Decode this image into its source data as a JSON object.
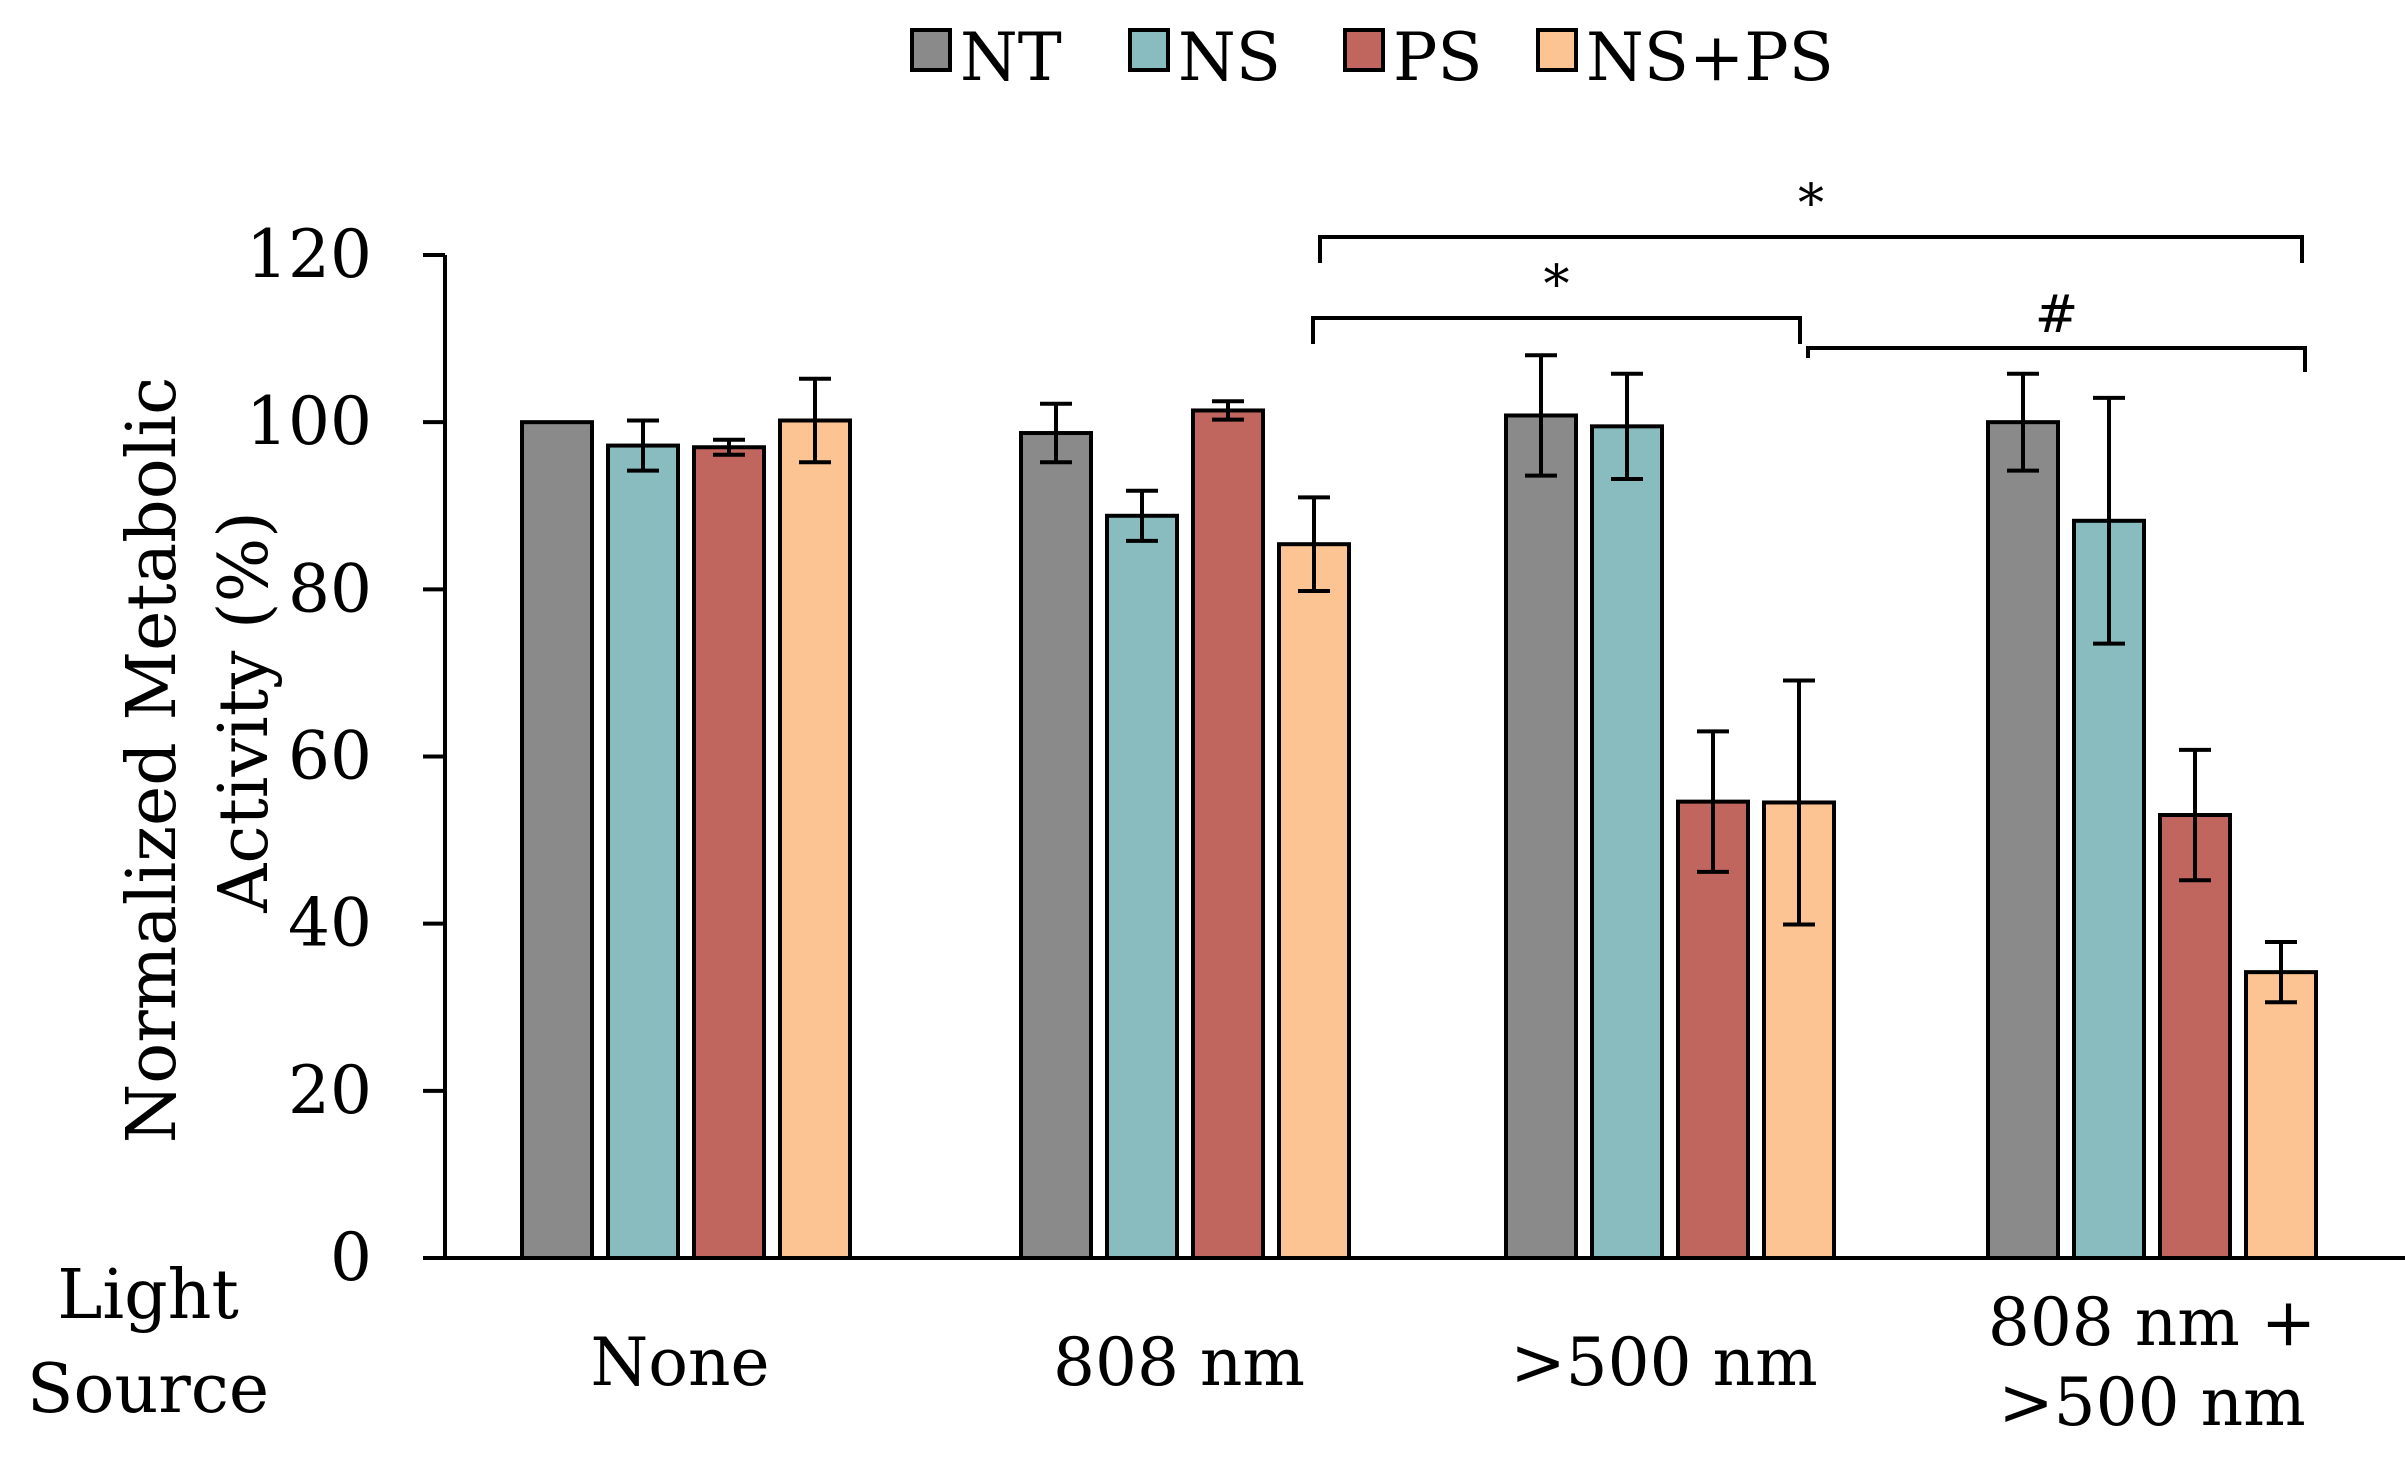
{
  "chart_data": {
    "type": "bar",
    "title": "",
    "ylabel": "Normalized Metabolic Activity (%)",
    "ylabel_lines": [
      "Normalized Metabolic",
      "Activity (%)"
    ],
    "xlabel_lines": [
      "Light",
      "Source"
    ],
    "ylim": [
      0,
      120
    ],
    "yticks": [
      0,
      20,
      40,
      60,
      80,
      100,
      120
    ],
    "categories": [
      "None",
      "808 nm",
      ">500 nm",
      "808 nm + >500 nm"
    ],
    "category_label_lines": [
      [
        "None"
      ],
      [
        "808 nm"
      ],
      [
        ">500 nm"
      ],
      [
        "808 nm +",
        ">500 nm"
      ]
    ],
    "series": [
      {
        "name": "NT",
        "color": "#8a8a8a",
        "values": [
          100,
          98.7,
          100.8,
          100
        ],
        "errors": [
          0,
          3.5,
          7.2,
          5.8
        ]
      },
      {
        "name": "NS",
        "color": "#88bcbf",
        "values": [
          97.2,
          88.8,
          99.5,
          88.2
        ],
        "errors": [
          3.0,
          3.0,
          6.3,
          14.7
        ]
      },
      {
        "name": "PS",
        "color": "#c1655f",
        "values": [
          97.0,
          101.4,
          54.6,
          53.0
        ],
        "errors": [
          0.9,
          1.1,
          8.4,
          7.8
        ]
      },
      {
        "name": "NS+PS",
        "color": "#fcc493",
        "values": [
          100.2,
          85.4,
          54.5,
          34.2
        ],
        "errors": [
          5.0,
          5.6,
          14.6,
          3.6
        ]
      }
    ],
    "legend_position": "top-center",
    "annotations": [
      {
        "label": "*",
        "from": {
          "category": 1,
          "series": 3
        },
        "to": {
          "category": 3,
          "series": 3
        },
        "tier": 2
      },
      {
        "label": "*",
        "from": {
          "category": 1,
          "series": 3
        },
        "to": {
          "category": 2,
          "series": 3
        },
        "tier": 1
      },
      {
        "label": "#",
        "from": {
          "category": 2,
          "series": 3
        },
        "to": {
          "category": 3,
          "series": 3
        },
        "tier": 0
      }
    ]
  }
}
